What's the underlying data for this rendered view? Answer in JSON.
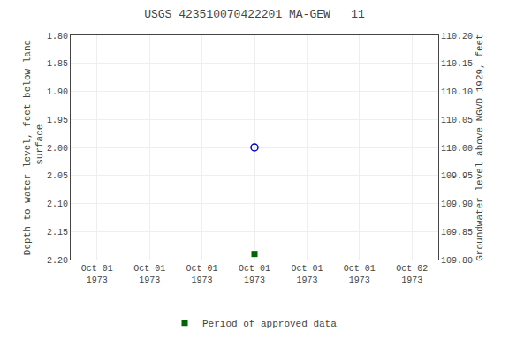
{
  "chart_data": {
    "type": "scatter",
    "title": "USGS 423510070422201 MA-GEW   11",
    "ylabel": "Depth to water level, feet below land\n surface",
    "y2label": "Groundwater level above NGVD 1929, feet",
    "categories": [
      "Oct 01\n1973",
      "Oct 01\n1973",
      "Oct 01\n1973",
      "Oct 01\n1973",
      "Oct 01\n1973",
      "Oct 01\n1973",
      "Oct 02\n1973"
    ],
    "series": [
      {
        "color": "#0000cc",
        "marker": "circle_open",
        "values": [
          null,
          null,
          null,
          2.0,
          null,
          null,
          null
        ]
      },
      {
        "name": "Period of approved data",
        "color": "#006400",
        "marker": "square",
        "values": [
          null,
          null,
          null,
          2.19,
          null,
          null,
          null
        ]
      }
    ],
    "ylim": [
      2.2,
      1.8
    ],
    "yticks": [
      {
        "value": 1.8,
        "label": "1.80"
      },
      1.85,
      {
        "value": 1.9,
        "label": "1.90"
      },
      1.95,
      {
        "value": 2.0,
        "label": "2.00"
      },
      2.05,
      {
        "value": 2.1,
        "label": "2.10"
      },
      2.15,
      {
        "value": 2.2,
        "label": "2.20"
      }
    ],
    "y2lim": [
      109.8,
      110.2
    ],
    "y2ticks": [
      {
        "value": 109.8,
        "label": "109.80"
      },
      109.85,
      {
        "value": 109.9,
        "label": "109.90"
      },
      109.95,
      {
        "value": 110.0,
        "label": "110.00"
      },
      110.05,
      {
        "value": 110.1,
        "label": "110.10"
      },
      110.15,
      {
        "value": 110.2,
        "label": "110.20"
      }
    ],
    "grid": true,
    "legend": "bottom"
  }
}
